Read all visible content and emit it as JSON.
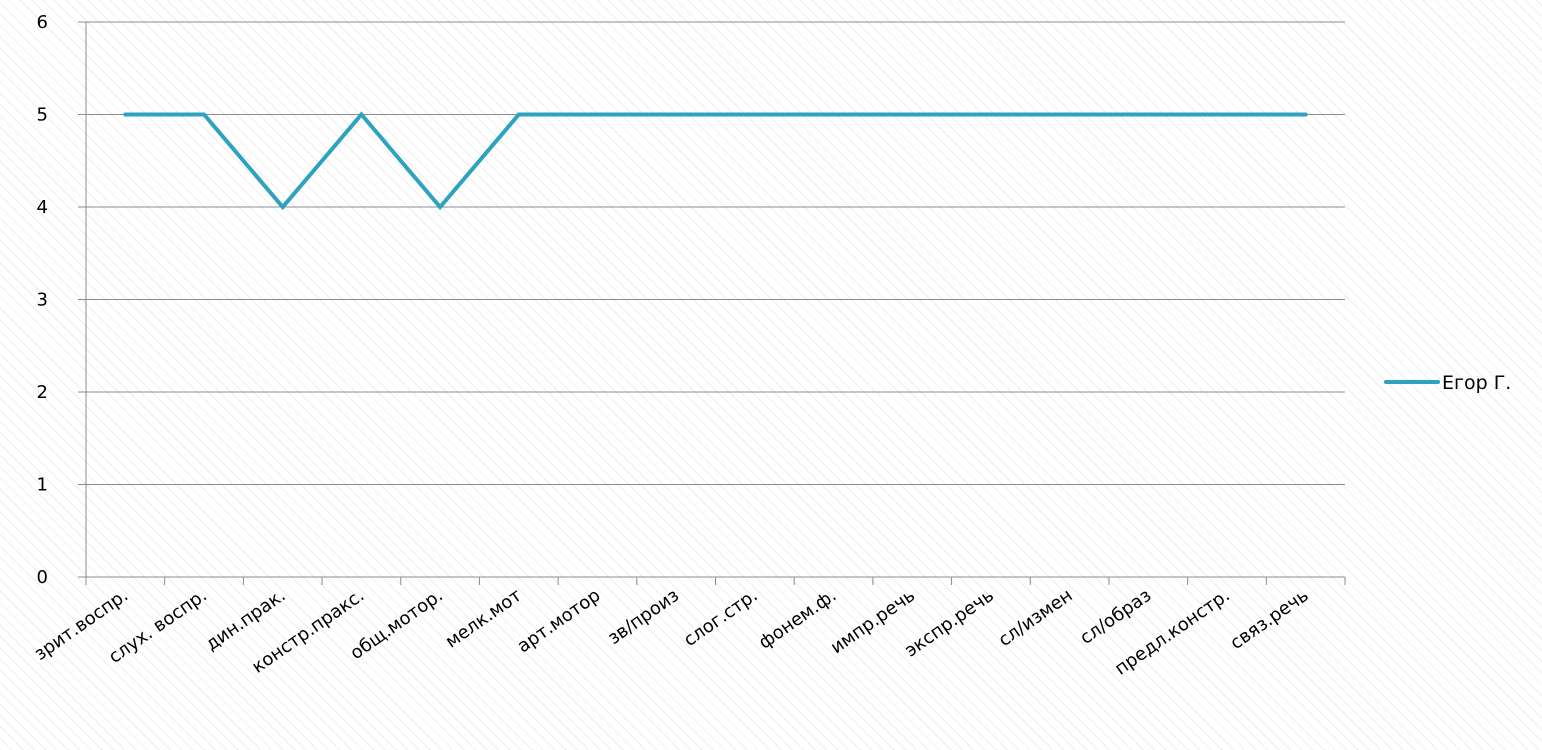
{
  "chart_data": {
    "type": "line",
    "categories": [
      "зрит.воспр.",
      "слух. воспр.",
      "дин.прак.",
      "констр.пракс.",
      "общ.мотор.",
      "мелк.мот",
      "арт.мотор",
      "зв/произ",
      "слог.стр.",
      "фонем.ф.",
      "импр.речь",
      "экспр.речь",
      "сл/измен",
      "сл/образ",
      "предл.констр.",
      "связ.речь"
    ],
    "series": [
      {
        "name": "Егор Г.",
        "values": [
          5,
          5,
          4,
          5,
          4,
          5,
          5,
          5,
          5,
          5,
          5,
          5,
          5,
          5,
          5,
          5
        ],
        "color": "#2da3c0"
      }
    ],
    "ylim": [
      0,
      6
    ],
    "yticks": [
      "0",
      "1",
      "2",
      "3",
      "4",
      "5",
      "6"
    ],
    "grid": true,
    "legend_position": "right"
  }
}
